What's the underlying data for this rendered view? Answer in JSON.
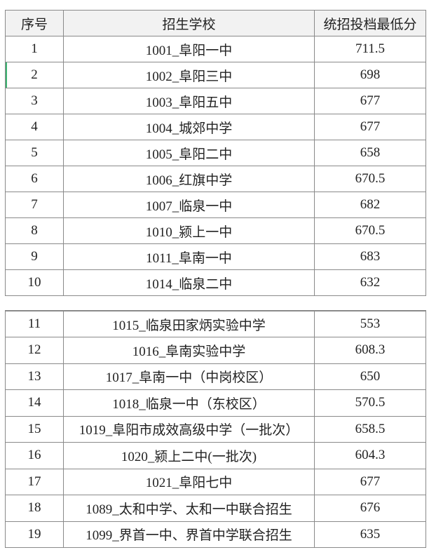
{
  "header": {
    "index": "序号",
    "school": "招生学校",
    "score": "统招投档最低分"
  },
  "rows_top": [
    {
      "index": "1",
      "school": "1001_阜阳一中",
      "score": "711.5"
    },
    {
      "index": "2",
      "school": "1002_阜阳三中",
      "score": "698"
    },
    {
      "index": "3",
      "school": "1003_阜阳五中",
      "score": "677"
    },
    {
      "index": "4",
      "school": "1004_城郊中学",
      "score": "677"
    },
    {
      "index": "5",
      "school": "1005_阜阳二中",
      "score": "658"
    },
    {
      "index": "6",
      "school": "1006_红旗中学",
      "score": "670.5"
    },
    {
      "index": "7",
      "school": "1007_临泉一中",
      "score": "682"
    },
    {
      "index": "8",
      "school": "1010_颍上一中",
      "score": "670.5"
    },
    {
      "index": "9",
      "school": "1011_阜南一中",
      "score": "683"
    },
    {
      "index": "10",
      "school": "1014_临泉二中",
      "score": "632"
    }
  ],
  "rows_bottom": [
    {
      "index": "11",
      "school": "1015_临泉田家炳实验中学",
      "score": "553"
    },
    {
      "index": "12",
      "school": "1016_阜南实验中学",
      "score": "608.3"
    },
    {
      "index": "13",
      "school": "1017_阜南一中（中岗校区）",
      "score": "650"
    },
    {
      "index": "14",
      "school": "1018_临泉一中（东校区）",
      "score": "570.5"
    },
    {
      "index": "15",
      "school": "1019_阜阳市成效高级中学（一批次）",
      "score": "658.5"
    },
    {
      "index": "16",
      "school": "1020_颍上二中(一批次)",
      "score": "604.3"
    },
    {
      "index": "17",
      "school": "1021_阜阳七中",
      "score": "677"
    },
    {
      "index": "18",
      "school": "1089_太和中学、太和一中联合招生",
      "score": "676"
    },
    {
      "index": "19",
      "school": "1099_界首一中、界首中学联合招生",
      "score": "635"
    }
  ]
}
